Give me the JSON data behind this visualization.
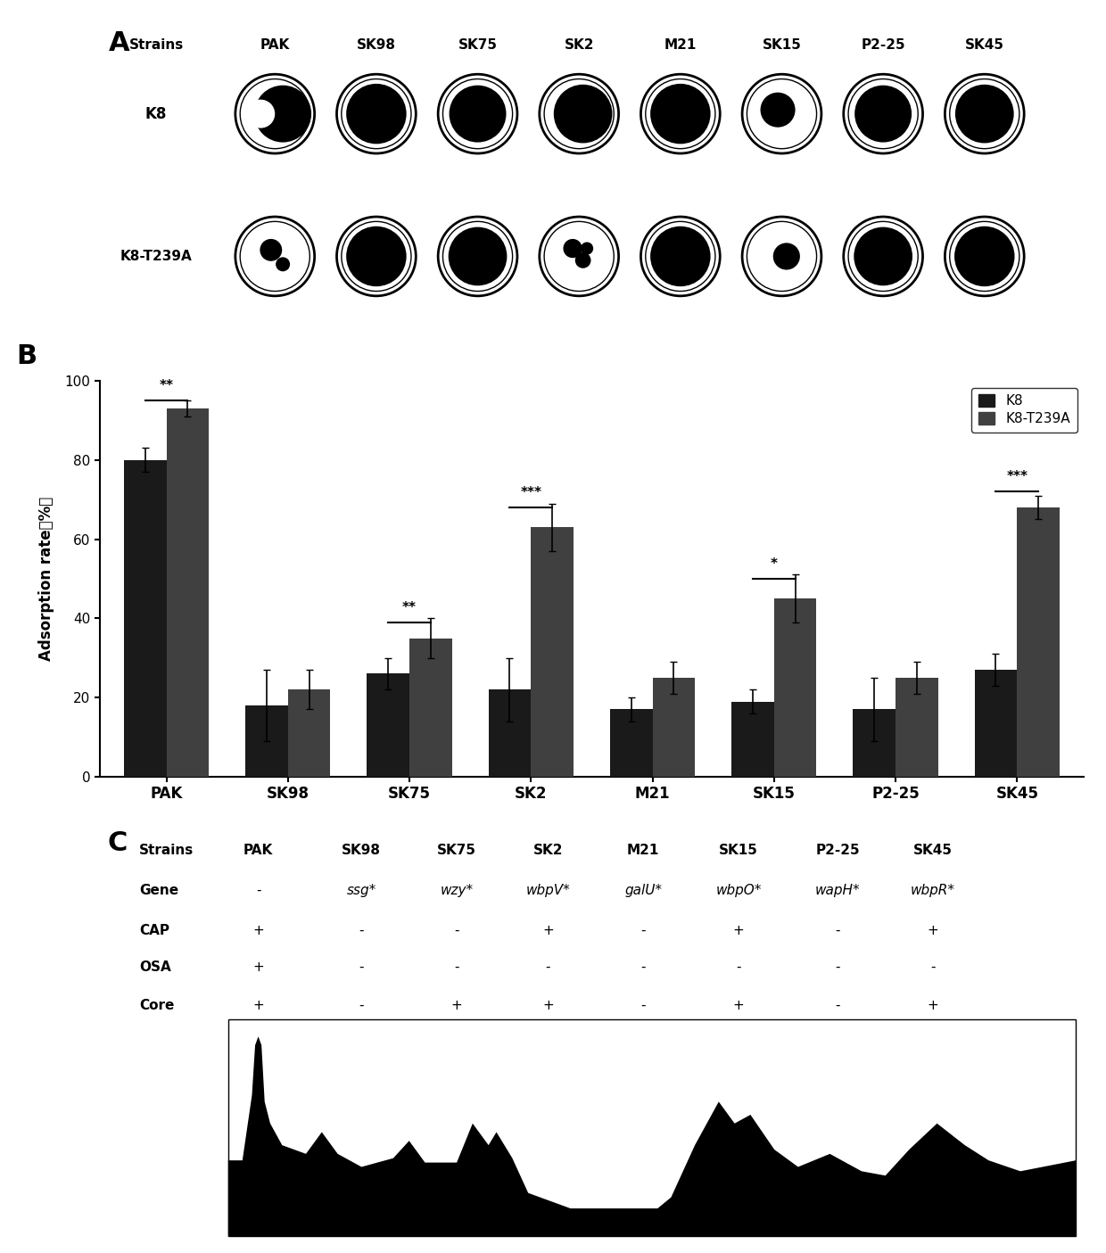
{
  "strains": [
    "PAK",
    "SK98",
    "SK75",
    "SK2",
    "M21",
    "SK15",
    "P2-25",
    "SK45"
  ],
  "panel_A_label": "A",
  "panel_B_label": "B",
  "panel_C_label": "C",
  "phage_labels": [
    "K8",
    "K8-T239A"
  ],
  "bar_K8": [
    80,
    18,
    26,
    22,
    17,
    19,
    17,
    27
  ],
  "bar_K8T239A": [
    93,
    22,
    35,
    63,
    25,
    45,
    25,
    68
  ],
  "err_K8": [
    3,
    9,
    4,
    8,
    3,
    3,
    8,
    4
  ],
  "err_K8T239A": [
    2,
    5,
    5,
    6,
    4,
    6,
    4,
    3
  ],
  "ylim": [
    0,
    100
  ],
  "yticks": [
    0,
    20,
    40,
    60,
    80,
    100
  ],
  "bar_color_K8": "#1a1a1a",
  "bar_color_K8T239A": "#404040",
  "gene_row": [
    "-",
    "ssg*",
    "wzy*",
    "wbpV*",
    "galU*",
    "wbpO*",
    "wapH*",
    "wbpR*"
  ],
  "CAP_row": [
    "+",
    "-",
    "-",
    "+",
    "-",
    "+",
    "-",
    "+"
  ],
  "OSA_row": [
    "+",
    "-",
    "-",
    "-",
    "-",
    "-",
    "-",
    "-"
  ],
  "Core_row": [
    "+",
    "-",
    "+",
    "+",
    "-",
    "+",
    "-",
    "+"
  ]
}
